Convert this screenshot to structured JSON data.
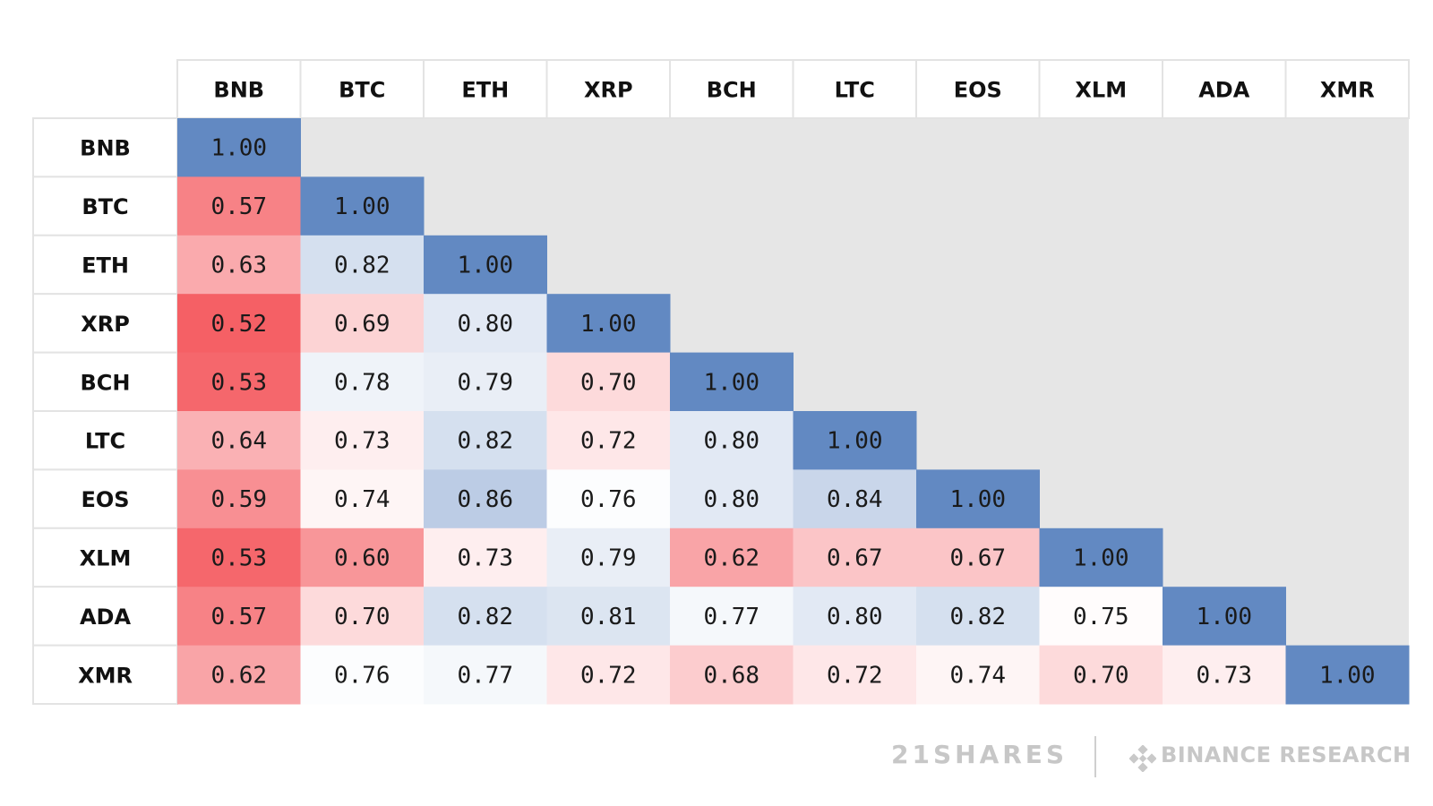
{
  "chart_data": {
    "type": "heatmap",
    "columns": [
      "BNB",
      "BTC",
      "ETH",
      "XRP",
      "BCH",
      "LTC",
      "EOS",
      "XLM",
      "ADA",
      "XMR"
    ],
    "rows": [
      "BNB",
      "BTC",
      "ETH",
      "XRP",
      "BCH",
      "LTC",
      "EOS",
      "XLM",
      "ADA",
      "XMR"
    ],
    "values": [
      [
        "1.00"
      ],
      [
        "0.57",
        "1.00"
      ],
      [
        "0.63",
        "0.82",
        "1.00"
      ],
      [
        "0.52",
        "0.69",
        "0.80",
        "1.00"
      ],
      [
        "0.53",
        "0.78",
        "0.79",
        "0.70",
        "1.00"
      ],
      [
        "0.64",
        "0.73",
        "0.82",
        "0.72",
        "0.80",
        "1.00"
      ],
      [
        "0.59",
        "0.74",
        "0.86",
        "0.76",
        "0.80",
        "0.84",
        "1.00"
      ],
      [
        "0.53",
        "0.60",
        "0.73",
        "0.79",
        "0.62",
        "0.67",
        "0.67",
        "1.00"
      ],
      [
        "0.57",
        "0.70",
        "0.82",
        "0.81",
        "0.77",
        "0.80",
        "0.82",
        "0.75",
        "1.00"
      ],
      [
        "0.62",
        "0.76",
        "0.77",
        "0.72",
        "0.68",
        "0.72",
        "0.74",
        "0.70",
        "0.73",
        "1.00"
      ]
    ],
    "color_scale": {
      "low_color": "#f56065",
      "mid_color": "#ffffff",
      "high_color": "#6289c2",
      "low": 0.52,
      "mid": 0.755,
      "high": 1.0,
      "empty_color": "#e6e6e6"
    }
  },
  "footer": {
    "brand_left": "21SHARES",
    "brand_right": "BINANCE RESEARCH",
    "icon": "binance-diamond-icon"
  }
}
